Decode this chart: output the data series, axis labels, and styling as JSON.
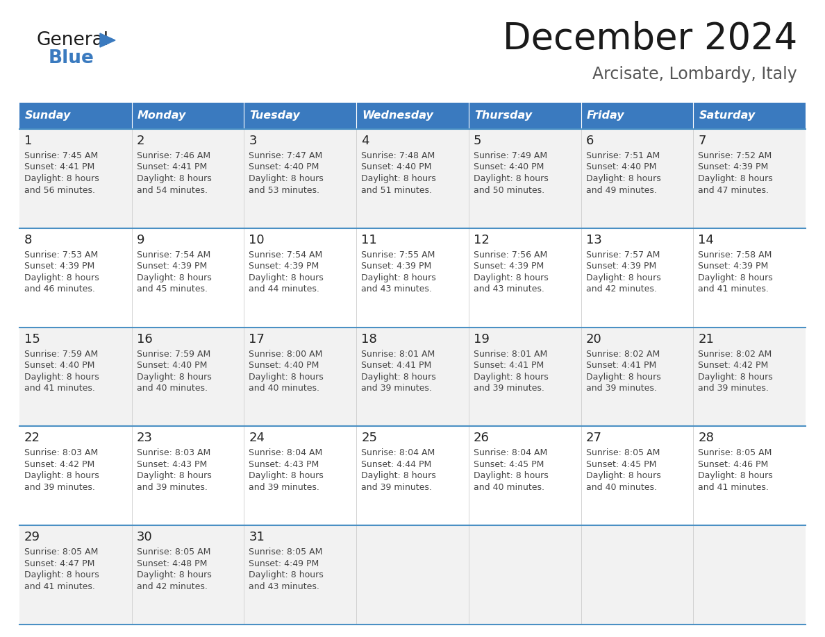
{
  "title": "December 2024",
  "subtitle": "Arcisate, Lombardy, Italy",
  "header_color": "#3a7abf",
  "header_text_color": "#ffffff",
  "row_bg_even": "#f2f2f2",
  "row_bg_odd": "#ffffff",
  "separator_color": "#4a90c4",
  "grid_color": "#cccccc",
  "day_names": [
    "Sunday",
    "Monday",
    "Tuesday",
    "Wednesday",
    "Thursday",
    "Friday",
    "Saturday"
  ],
  "days": [
    {
      "day": 1,
      "col": 0,
      "row": 0,
      "sunrise": "7:45 AM",
      "sunset": "4:41 PM",
      "daylight": "8 hours",
      "daylight2": "and 56 minutes."
    },
    {
      "day": 2,
      "col": 1,
      "row": 0,
      "sunrise": "7:46 AM",
      "sunset": "4:41 PM",
      "daylight": "8 hours",
      "daylight2": "and 54 minutes."
    },
    {
      "day": 3,
      "col": 2,
      "row": 0,
      "sunrise": "7:47 AM",
      "sunset": "4:40 PM",
      "daylight": "8 hours",
      "daylight2": "and 53 minutes."
    },
    {
      "day": 4,
      "col": 3,
      "row": 0,
      "sunrise": "7:48 AM",
      "sunset": "4:40 PM",
      "daylight": "8 hours",
      "daylight2": "and 51 minutes."
    },
    {
      "day": 5,
      "col": 4,
      "row": 0,
      "sunrise": "7:49 AM",
      "sunset": "4:40 PM",
      "daylight": "8 hours",
      "daylight2": "and 50 minutes."
    },
    {
      "day": 6,
      "col": 5,
      "row": 0,
      "sunrise": "7:51 AM",
      "sunset": "4:40 PM",
      "daylight": "8 hours",
      "daylight2": "and 49 minutes."
    },
    {
      "day": 7,
      "col": 6,
      "row": 0,
      "sunrise": "7:52 AM",
      "sunset": "4:39 PM",
      "daylight": "8 hours",
      "daylight2": "and 47 minutes."
    },
    {
      "day": 8,
      "col": 0,
      "row": 1,
      "sunrise": "7:53 AM",
      "sunset": "4:39 PM",
      "daylight": "8 hours",
      "daylight2": "and 46 minutes."
    },
    {
      "day": 9,
      "col": 1,
      "row": 1,
      "sunrise": "7:54 AM",
      "sunset": "4:39 PM",
      "daylight": "8 hours",
      "daylight2": "and 45 minutes."
    },
    {
      "day": 10,
      "col": 2,
      "row": 1,
      "sunrise": "7:54 AM",
      "sunset": "4:39 PM",
      "daylight": "8 hours",
      "daylight2": "and 44 minutes."
    },
    {
      "day": 11,
      "col": 3,
      "row": 1,
      "sunrise": "7:55 AM",
      "sunset": "4:39 PM",
      "daylight": "8 hours",
      "daylight2": "and 43 minutes."
    },
    {
      "day": 12,
      "col": 4,
      "row": 1,
      "sunrise": "7:56 AM",
      "sunset": "4:39 PM",
      "daylight": "8 hours",
      "daylight2": "and 43 minutes."
    },
    {
      "day": 13,
      "col": 5,
      "row": 1,
      "sunrise": "7:57 AM",
      "sunset": "4:39 PM",
      "daylight": "8 hours",
      "daylight2": "and 42 minutes."
    },
    {
      "day": 14,
      "col": 6,
      "row": 1,
      "sunrise": "7:58 AM",
      "sunset": "4:39 PM",
      "daylight": "8 hours",
      "daylight2": "and 41 minutes."
    },
    {
      "day": 15,
      "col": 0,
      "row": 2,
      "sunrise": "7:59 AM",
      "sunset": "4:40 PM",
      "daylight": "8 hours",
      "daylight2": "and 41 minutes."
    },
    {
      "day": 16,
      "col": 1,
      "row": 2,
      "sunrise": "7:59 AM",
      "sunset": "4:40 PM",
      "daylight": "8 hours",
      "daylight2": "and 40 minutes."
    },
    {
      "day": 17,
      "col": 2,
      "row": 2,
      "sunrise": "8:00 AM",
      "sunset": "4:40 PM",
      "daylight": "8 hours",
      "daylight2": "and 40 minutes."
    },
    {
      "day": 18,
      "col": 3,
      "row": 2,
      "sunrise": "8:01 AM",
      "sunset": "4:41 PM",
      "daylight": "8 hours",
      "daylight2": "and 39 minutes."
    },
    {
      "day": 19,
      "col": 4,
      "row": 2,
      "sunrise": "8:01 AM",
      "sunset": "4:41 PM",
      "daylight": "8 hours",
      "daylight2": "and 39 minutes."
    },
    {
      "day": 20,
      "col": 5,
      "row": 2,
      "sunrise": "8:02 AM",
      "sunset": "4:41 PM",
      "daylight": "8 hours",
      "daylight2": "and 39 minutes."
    },
    {
      "day": 21,
      "col": 6,
      "row": 2,
      "sunrise": "8:02 AM",
      "sunset": "4:42 PM",
      "daylight": "8 hours",
      "daylight2": "and 39 minutes."
    },
    {
      "day": 22,
      "col": 0,
      "row": 3,
      "sunrise": "8:03 AM",
      "sunset": "4:42 PM",
      "daylight": "8 hours",
      "daylight2": "and 39 minutes."
    },
    {
      "day": 23,
      "col": 1,
      "row": 3,
      "sunrise": "8:03 AM",
      "sunset": "4:43 PM",
      "daylight": "8 hours",
      "daylight2": "and 39 minutes."
    },
    {
      "day": 24,
      "col": 2,
      "row": 3,
      "sunrise": "8:04 AM",
      "sunset": "4:43 PM",
      "daylight": "8 hours",
      "daylight2": "and 39 minutes."
    },
    {
      "day": 25,
      "col": 3,
      "row": 3,
      "sunrise": "8:04 AM",
      "sunset": "4:44 PM",
      "daylight": "8 hours",
      "daylight2": "and 39 minutes."
    },
    {
      "day": 26,
      "col": 4,
      "row": 3,
      "sunrise": "8:04 AM",
      "sunset": "4:45 PM",
      "daylight": "8 hours",
      "daylight2": "and 40 minutes."
    },
    {
      "day": 27,
      "col": 5,
      "row": 3,
      "sunrise": "8:05 AM",
      "sunset": "4:45 PM",
      "daylight": "8 hours",
      "daylight2": "and 40 minutes."
    },
    {
      "day": 28,
      "col": 6,
      "row": 3,
      "sunrise": "8:05 AM",
      "sunset": "4:46 PM",
      "daylight": "8 hours",
      "daylight2": "and 41 minutes."
    },
    {
      "day": 29,
      "col": 0,
      "row": 4,
      "sunrise": "8:05 AM",
      "sunset": "4:47 PM",
      "daylight": "8 hours",
      "daylight2": "and 41 minutes."
    },
    {
      "day": 30,
      "col": 1,
      "row": 4,
      "sunrise": "8:05 AM",
      "sunset": "4:48 PM",
      "daylight": "8 hours",
      "daylight2": "and 42 minutes."
    },
    {
      "day": 31,
      "col": 2,
      "row": 4,
      "sunrise": "8:05 AM",
      "sunset": "4:49 PM",
      "daylight": "8 hours",
      "daylight2": "and 43 minutes."
    }
  ]
}
